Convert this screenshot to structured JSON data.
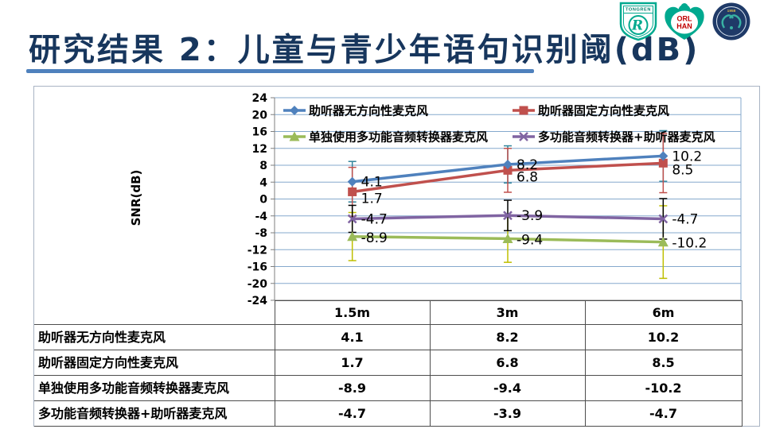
{
  "header": {
    "title": "研究结果 2：儿童与青少年语句识别阈(dB)",
    "logos": {
      "tongren_text": "TONGREN",
      "tongren_monogram": "R",
      "orl_line1": "ORL",
      "orl_line2": "HAN",
      "badge_year": "1958"
    }
  },
  "chart_data": {
    "type": "line",
    "title": "",
    "xlabel": "",
    "ylabel": "SNR(dB)",
    "categories": [
      "1.5m",
      "3m",
      "6m"
    ],
    "ylim": [
      -24,
      24
    ],
    "yticks": [
      24,
      20,
      16,
      12,
      8,
      4,
      0,
      -4,
      -8,
      -12,
      -16,
      -20,
      -24
    ],
    "grid": true,
    "legend_position": "top-inside",
    "series": [
      {
        "name": "助听器无方向性麦克风",
        "values": [
          4.1,
          8.2,
          10.2
        ],
        "labels": [
          "4.1",
          "8.2",
          "10.2"
        ],
        "color": "#4F81BD",
        "marker": "diamond",
        "error_color": "#31859C",
        "errors": [
          4.8,
          4.4,
          6.0
        ]
      },
      {
        "name": "助听器固定方向性麦克风",
        "values": [
          1.7,
          6.8,
          8.5
        ],
        "labels": [
          "1.7",
          "6.8",
          "8.5"
        ],
        "color": "#C0504D",
        "marker": "square",
        "error_color": "#C0504D",
        "errors": [
          5.8,
          5.2,
          7.0
        ]
      },
      {
        "name": "单独使用多功能音频转换器麦克风",
        "values": [
          -8.9,
          -9.4,
          -10.2
        ],
        "labels": [
          "-8.9",
          "-9.4",
          "-10.2"
        ],
        "color": "#9BBB59",
        "marker": "triangle",
        "error_color": "#BFBF00",
        "errors": [
          5.7,
          5.6,
          8.6
        ]
      },
      {
        "name": "多功能音频转换器+助听器麦克风",
        "values": [
          -4.7,
          -3.9,
          -4.7
        ],
        "labels": [
          "-4.7",
          "-3.9",
          "-4.7"
        ],
        "color": "#8064A2",
        "marker": "x",
        "error_color": "#000000",
        "errors": [
          3.2,
          3.6,
          4.8
        ]
      }
    ]
  },
  "table": {
    "col_headers": [
      "1.5m",
      "3m",
      "6m"
    ],
    "rows": [
      {
        "label": "助听器无方向性麦克风",
        "values": [
          "4.1",
          "8.2",
          "10.2"
        ]
      },
      {
        "label": "助听器固定方向性麦克风",
        "values": [
          "1.7",
          "6.8",
          "8.5"
        ]
      },
      {
        "label": "单独使用多功能音频转换器麦克风",
        "values": [
          "-8.9",
          "-9.4",
          "-10.2"
        ]
      },
      {
        "label": "多功能音频转换器+助听器麦克风",
        "values": [
          "-4.7",
          "-3.9",
          "-4.7"
        ]
      }
    ]
  },
  "colors": {
    "title": "#17365D",
    "underline": "#4F81BD",
    "gridline": "#85A9CD",
    "axis": "#7F7F7F",
    "logo_teal": "#00A98F",
    "logo_navy": "#1F3A68",
    "logo_red": "#C00000",
    "table_border": "#4D4D4D"
  }
}
